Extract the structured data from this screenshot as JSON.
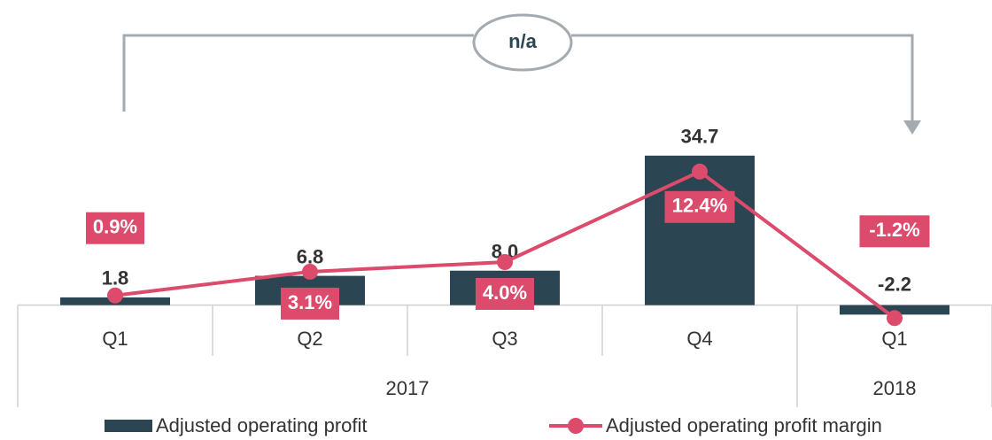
{
  "chart_data": {
    "type": "bar_line",
    "annotation": "n/a",
    "categories": [
      "Q1",
      "Q2",
      "Q3",
      "Q4",
      "Q1"
    ],
    "groups": [
      {
        "label": "2017",
        "span": 4
      },
      {
        "label": "2018",
        "span": 1
      }
    ],
    "series": [
      {
        "name": "Adjusted operating profit",
        "type": "bar",
        "color": "#2b4552",
        "values": [
          1.8,
          6.8,
          8.0,
          34.7,
          -2.2
        ],
        "value_labels": [
          "1.8",
          "6.8",
          "8.0",
          "34.7",
          "-2.2"
        ]
      },
      {
        "name": "Adjusted operating profit margin",
        "type": "line",
        "axis": "y2",
        "color": "#dc4a6c",
        "values": [
          0.9,
          3.1,
          4.0,
          12.4,
          -1.2
        ],
        "value_labels": [
          "0.9%",
          "3.1%",
          "4.0%",
          "12.4%",
          "-1.2%"
        ]
      }
    ],
    "ylim": [
      -5,
      40
    ],
    "y2lim": [
      -2,
      16
    ]
  }
}
